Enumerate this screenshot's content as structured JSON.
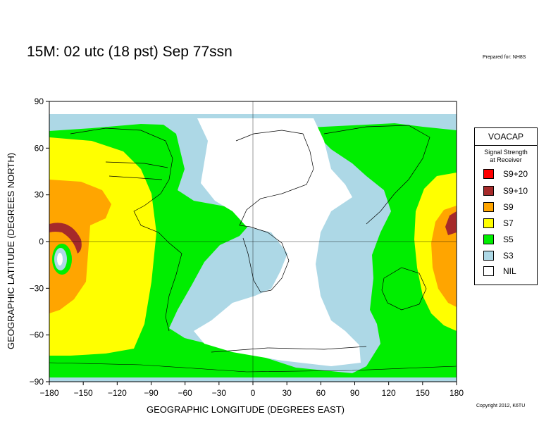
{
  "header": {
    "title": "15M:  02 utc (18 pst) Sep 77ssn",
    "prepared_for": "Prepared for: NH8S"
  },
  "footer": {
    "copyright": "Copyright 2012, K6TU"
  },
  "map": {
    "x_axis_title": "GEOGRAPHIC LONGITUDE (DEGREES EAST)",
    "y_axis_title": "GEOGRAPHIC LATITUDE (DEGREES NORTH)",
    "x_range": [
      -180,
      180
    ],
    "y_range": [
      -90,
      90
    ],
    "x_ticks": [
      "−180",
      "−150",
      "−120",
      "−90",
      "−60",
      "−30",
      "0",
      "30",
      "60",
      "90",
      "120",
      "150",
      "180"
    ],
    "y_ticks": [
      "90",
      "60",
      "30",
      "0",
      "−30",
      "−60",
      "−90"
    ],
    "colors": {
      "S9+20": "#ff0000",
      "S9+10": "#a52a2a",
      "S9": "#ffa500",
      "S7": "#ffff00",
      "S5": "#00ee00",
      "S3": "#add8e6",
      "NIL": "#ffffff"
    }
  },
  "legend": {
    "title": "VOACAP",
    "subtitle_line1": "Signal Strength",
    "subtitle_line2": "at Receiver",
    "items": [
      {
        "label": "S9+20",
        "color": "#ff0000"
      },
      {
        "label": "S9+10",
        "color": "#a52a2a"
      },
      {
        "label": "S9",
        "color": "#ffa500"
      },
      {
        "label": "S7",
        "color": "#ffff00"
      },
      {
        "label": "S5",
        "color": "#00ee00"
      },
      {
        "label": "S3",
        "color": "#add8e6"
      },
      {
        "label": "NIL",
        "color": "#ffffff"
      }
    ]
  }
}
